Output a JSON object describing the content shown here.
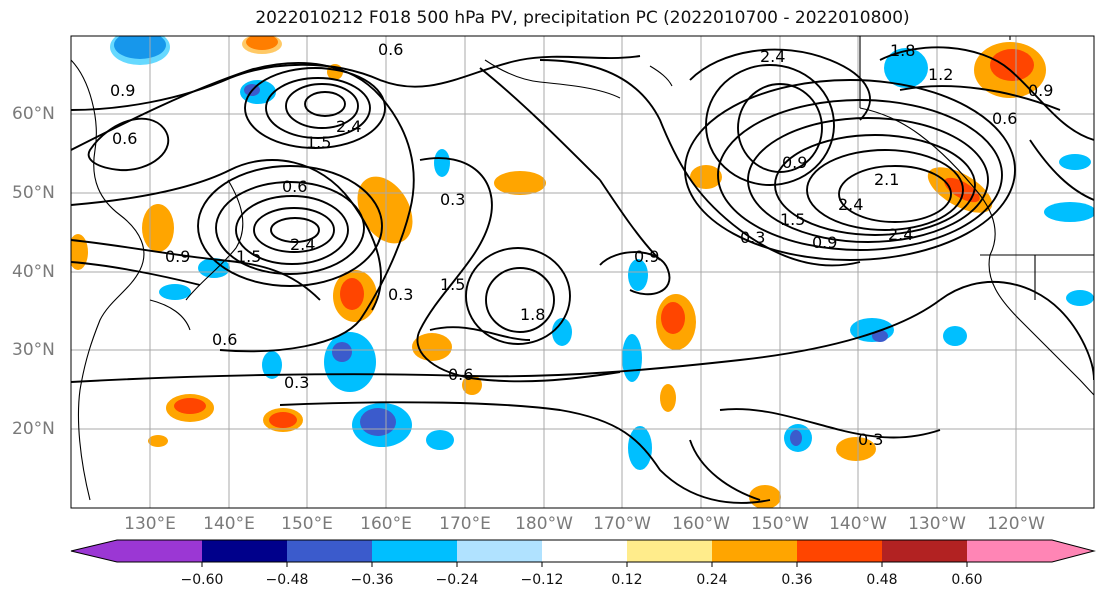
{
  "title": "2022010212 F018 500 hPa PV, precipitation PC (2022010700 - 2022010800)",
  "map": {
    "lat_labels": [
      "60°N",
      "50°N",
      "40°N",
      "30°N",
      "20°N"
    ],
    "lon_labels": [
      "130°E",
      "140°E",
      "150°E",
      "160°E",
      "170°E",
      "180°W",
      "170°W",
      "160°W",
      "150°W",
      "140°W",
      "130°W",
      "120°W"
    ],
    "gridline_color": "#a8a8a8",
    "contour_color": "#000000",
    "pv_contour_labels": [
      "0.3",
      "0.6",
      "0.9",
      "1.2",
      "1.5",
      "1.8",
      "2.1",
      "2.4"
    ]
  },
  "colorbar": {
    "colors": [
      "#9b37d4",
      "#00008b",
      "#3b5bcc",
      "#00bfff",
      "#b0e2ff",
      "#ffffff",
      "#ffec8b",
      "#ffa500",
      "#ff4500",
      "#b22222",
      "#ff85b5"
    ],
    "tick_labels": [
      "−0.60",
      "−0.48",
      "−0.36",
      "−0.24",
      "−0.12",
      "0.12",
      "0.24",
      "0.36",
      "0.48",
      "0.60"
    ]
  }
}
